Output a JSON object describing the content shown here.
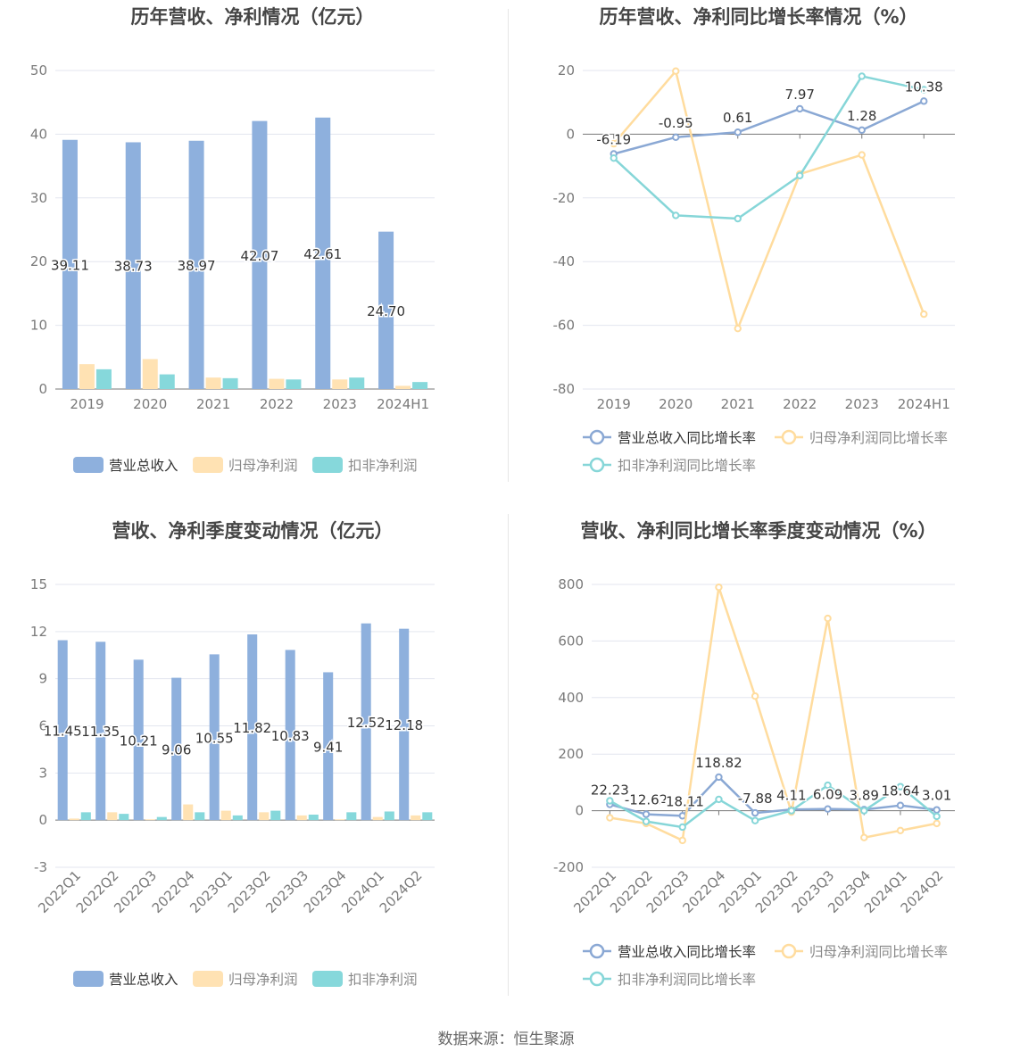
{
  "chart_data": [
    {
      "type": "bar",
      "title": "历年营收、净利情况（亿元）",
      "categories": [
        "2019",
        "2020",
        "2021",
        "2022",
        "2023",
        "2024H1"
      ],
      "ylim": [
        0,
        50
      ],
      "yticks": [
        0,
        10,
        20,
        30,
        40,
        50
      ],
      "grid": true,
      "legend_position": "bottom",
      "series": [
        {
          "name": "营业总收入",
          "color": "#8eb0dd",
          "values": [
            39.11,
            38.73,
            38.97,
            42.07,
            42.61,
            24.7
          ],
          "labels": [
            "39.11",
            "38.73",
            "38.97",
            "42.07",
            "42.61",
            "24.70"
          ]
        },
        {
          "name": "归母净利润",
          "color": "#ffe2b3",
          "values": [
            3.9,
            4.7,
            1.8,
            1.6,
            1.5,
            0.5
          ]
        },
        {
          "name": "扣非净利润",
          "color": "#86d8db",
          "values": [
            3.1,
            2.3,
            1.7,
            1.5,
            1.8,
            1.1
          ]
        }
      ]
    },
    {
      "type": "line",
      "title": "历年营收、净利同比增长率情况（%）",
      "categories": [
        "2019",
        "2020",
        "2021",
        "2022",
        "2023",
        "2024H1"
      ],
      "ylim": [
        -80,
        20
      ],
      "yticks": [
        -80,
        -60,
        -40,
        -20,
        0,
        20
      ],
      "grid": true,
      "legend_position": "bottom",
      "series": [
        {
          "name": "营业总收入同比增长率",
          "color": "#8aa8d4",
          "values": [
            -6.19,
            -0.95,
            0.61,
            7.97,
            1.28,
            10.38
          ],
          "labels": [
            "-6.19",
            "-0.95",
            "0.61",
            "7.97",
            "1.28",
            "10.38"
          ]
        },
        {
          "name": "归母净利润同比增长率",
          "color": "#ffdc9e",
          "values": [
            -3.0,
            19.8,
            -61.0,
            -12.5,
            -6.5,
            -56.5
          ]
        },
        {
          "name": "扣非净利润同比增长率",
          "color": "#86d6d8",
          "values": [
            -7.5,
            -25.5,
            -26.5,
            -13.0,
            18.2,
            14.0
          ]
        }
      ]
    },
    {
      "type": "bar",
      "title": "营收、净利季度变动情况（亿元）",
      "categories": [
        "2022Q1",
        "2022Q2",
        "2022Q3",
        "2022Q4",
        "2023Q1",
        "2023Q2",
        "2023Q3",
        "2023Q4",
        "2024Q1",
        "2024Q2"
      ],
      "ylim": [
        -3,
        15
      ],
      "yticks": [
        -3,
        0,
        3,
        6,
        9,
        12,
        15
      ],
      "grid": true,
      "legend_position": "bottom",
      "series": [
        {
          "name": "营业总收入",
          "color": "#8eb0dd",
          "values": [
            11.45,
            11.35,
            10.21,
            9.06,
            10.55,
            11.82,
            10.83,
            9.41,
            12.52,
            12.18
          ],
          "labels": [
            "11.45",
            "11.35",
            "10.21",
            "9.06",
            "10.55",
            "11.82",
            "10.83",
            "9.41",
            "12.52",
            "12.18"
          ]
        },
        {
          "name": "归母净利润",
          "color": "#ffe2b3",
          "values": [
            0.1,
            0.5,
            0.05,
            1.0,
            0.6,
            0.5,
            0.3,
            0.05,
            0.2,
            0.3
          ]
        },
        {
          "name": "扣非净利润",
          "color": "#86d8db",
          "values": [
            0.5,
            0.4,
            0.2,
            0.5,
            0.3,
            0.6,
            0.35,
            0.5,
            0.55,
            0.5
          ]
        }
      ]
    },
    {
      "type": "line",
      "title": "营收、净利同比增长率季度变动情况（%）",
      "categories": [
        "2022Q1",
        "2022Q2",
        "2022Q3",
        "2022Q4",
        "2023Q1",
        "2023Q2",
        "2023Q3",
        "2023Q4",
        "2024Q1",
        "2024Q2"
      ],
      "ylim": [
        -200,
        800
      ],
      "yticks": [
        -200,
        0,
        200,
        400,
        600,
        800
      ],
      "grid": true,
      "legend_position": "bottom",
      "series": [
        {
          "name": "营业总收入同比增长率",
          "color": "#8aa8d4",
          "values": [
            22.23,
            -12.62,
            -18.11,
            118.82,
            -7.88,
            4.11,
            6.09,
            3.89,
            18.64,
            3.01
          ],
          "labels": [
            "22.23",
            "-12.62",
            "-18.11",
            "118.82",
            "-7.88",
            "4.11",
            "6.09",
            "3.89",
            "18.64",
            "3.01"
          ]
        },
        {
          "name": "归母净利润同比增长率",
          "color": "#ffdc9e",
          "values": [
            -25,
            -45,
            -105,
            790,
            405,
            -5,
            680,
            -95,
            -70,
            -45
          ]
        },
        {
          "name": "扣非净利润同比增长率",
          "color": "#86d6d8",
          "values": [
            35,
            -38,
            -58,
            40,
            -35,
            0,
            90,
            0,
            85,
            -20
          ]
        }
      ]
    }
  ],
  "footer": {
    "source": "数据来源：恒生聚源"
  }
}
